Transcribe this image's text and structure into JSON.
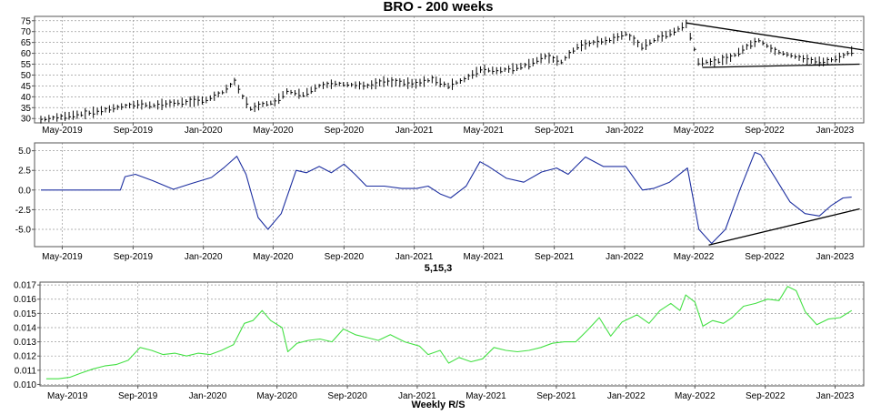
{
  "chart_data": [
    {
      "type": "ohlc",
      "title": "BRO - 200 weeks",
      "xlabel": "",
      "ylabel": "",
      "ylim": [
        28,
        77
      ],
      "yticks": [
        30,
        35,
        40,
        45,
        50,
        55,
        60,
        65,
        70,
        75
      ],
      "xlim": [
        "2019-03-14",
        "2023-02-20"
      ],
      "xticks": [
        "May-2019",
        "Sep-2019",
        "Jan-2020",
        "May-2020",
        "Sep-2020",
        "Jan-2021",
        "May-2021",
        "Sep-2021",
        "Jan-2022",
        "May-2022",
        "Sep-2022",
        "Jan-2023"
      ],
      "grid": true,
      "line_color": "#000000",
      "series": [
        {
          "points": [
            [
              "2019-03-25",
              29.5
            ],
            [
              "2019-04-22",
              30.5
            ],
            [
              "2019-05-20",
              31.5
            ],
            [
              "2019-06-17",
              32.5
            ],
            [
              "2019-07-15",
              34.0
            ],
            [
              "2019-08-12",
              35.5
            ],
            [
              "2019-09-09",
              36.5
            ],
            [
              "2019-10-07",
              36.0
            ],
            [
              "2019-11-04",
              37.0
            ],
            [
              "2019-12-02",
              37.5
            ],
            [
              "2020-01-06",
              38.5
            ],
            [
              "2020-02-03",
              42.0
            ],
            [
              "2020-02-24",
              47.0
            ],
            [
              "2020-03-09",
              40.0
            ],
            [
              "2020-03-23",
              34.5
            ],
            [
              "2020-04-13",
              36.5
            ],
            [
              "2020-05-04",
              37.5
            ],
            [
              "2020-05-25",
              42.5
            ],
            [
              "2020-06-22",
              41.0
            ],
            [
              "2020-07-20",
              45.0
            ],
            [
              "2020-08-17",
              46.0
            ],
            [
              "2020-09-14",
              45.5
            ],
            [
              "2020-10-12",
              45.0
            ],
            [
              "2020-11-09",
              47.0
            ],
            [
              "2020-12-07",
              46.5
            ],
            [
              "2021-01-04",
              46.0
            ],
            [
              "2021-02-01",
              48.0
            ],
            [
              "2021-03-01",
              45.0
            ],
            [
              "2021-03-29",
              48.0
            ],
            [
              "2021-04-26",
              52.5
            ],
            [
              "2021-05-24",
              52.0
            ],
            [
              "2021-06-21",
              53.0
            ],
            [
              "2021-07-19",
              55.0
            ],
            [
              "2021-08-16",
              58.5
            ],
            [
              "2021-09-13",
              56.0
            ],
            [
              "2021-10-11",
              63.0
            ],
            [
              "2021-11-08",
              65.0
            ],
            [
              "2021-12-06",
              66.0
            ],
            [
              "2022-01-03",
              69.0
            ],
            [
              "2022-01-31",
              63.0
            ],
            [
              "2022-02-28",
              67.0
            ],
            [
              "2022-03-28",
              70.0
            ],
            [
              "2022-04-18",
              73.5
            ],
            [
              "2022-05-09",
              56.0
            ],
            [
              "2022-06-06",
              56.0
            ],
            [
              "2022-07-04",
              58.0
            ],
            [
              "2022-08-01",
              63.0
            ],
            [
              "2022-08-22",
              66.0
            ],
            [
              "2022-09-19",
              61.0
            ],
            [
              "2022-10-17",
              59.0
            ],
            [
              "2022-11-14",
              57.0
            ],
            [
              "2022-12-12",
              56.0
            ],
            [
              "2023-01-09",
              58.0
            ],
            [
              "2023-01-30",
              61.0
            ]
          ]
        },
        {
          "name": "trendline-upper",
          "points": [
            [
              "2022-04-18",
              74.0
            ],
            [
              "2023-02-20",
              61.5
            ]
          ]
        },
        {
          "name": "trendline-lower",
          "points": [
            [
              "2022-05-16",
              53.5
            ],
            [
              "2023-02-13",
              55.0
            ]
          ]
        }
      ]
    },
    {
      "type": "line",
      "title": "",
      "xlabel": "5,15,3",
      "ylabel": "",
      "ylim": [
        -7.2,
        6.0
      ],
      "yticks": [
        -5.0,
        -2.5,
        0.0,
        2.5,
        5.0
      ],
      "ytick_labels": [
        "-5.0",
        "-2.5",
        "0.0",
        "2.5",
        "5.0"
      ],
      "xlim": [
        "2019-03-14",
        "2023-02-20"
      ],
      "xticks": [
        "May-2019",
        "Sep-2019",
        "Jan-2020",
        "May-2020",
        "Sep-2020",
        "Jan-2021",
        "May-2021",
        "Sep-2021",
        "Jan-2022",
        "May-2022",
        "Sep-2022",
        "Jan-2023"
      ],
      "grid": true,
      "line_color": "#1d2fa0",
      "series": [
        {
          "points": [
            [
              "2019-03-25",
              0.0
            ],
            [
              "2019-08-10",
              0.0
            ],
            [
              "2019-08-18",
              1.7
            ],
            [
              "2019-09-05",
              2.0
            ],
            [
              "2019-10-05",
              1.2
            ],
            [
              "2019-11-10",
              0.1
            ],
            [
              "2019-12-10",
              0.8
            ],
            [
              "2020-01-15",
              1.6
            ],
            [
              "2020-02-05",
              2.8
            ],
            [
              "2020-02-28",
              4.3
            ],
            [
              "2020-03-15",
              2.0
            ],
            [
              "2020-04-05",
              -3.5
            ],
            [
              "2020-04-22",
              -5.0
            ],
            [
              "2020-05-15",
              -3.0
            ],
            [
              "2020-06-10",
              2.5
            ],
            [
              "2020-06-28",
              2.2
            ],
            [
              "2020-07-20",
              3.0
            ],
            [
              "2020-08-10",
              2.2
            ],
            [
              "2020-09-01",
              3.3
            ],
            [
              "2020-09-20",
              2.0
            ],
            [
              "2020-10-10",
              0.5
            ],
            [
              "2020-11-10",
              0.5
            ],
            [
              "2020-12-10",
              0.2
            ],
            [
              "2021-01-05",
              0.2
            ],
            [
              "2021-01-25",
              0.5
            ],
            [
              "2021-02-15",
              -0.5
            ],
            [
              "2021-03-05",
              -1.0
            ],
            [
              "2021-04-01",
              0.5
            ],
            [
              "2021-04-25",
              3.6
            ],
            [
              "2021-05-10",
              3.0
            ],
            [
              "2021-06-10",
              1.5
            ],
            [
              "2021-07-10",
              1.0
            ],
            [
              "2021-08-10",
              2.3
            ],
            [
              "2021-09-05",
              2.8
            ],
            [
              "2021-09-25",
              2.0
            ],
            [
              "2021-10-25",
              4.2
            ],
            [
              "2021-11-25",
              3.0
            ],
            [
              "2022-01-03",
              3.0
            ],
            [
              "2022-02-01",
              0.0
            ],
            [
              "2022-02-20",
              0.2
            ],
            [
              "2022-03-20",
              1.0
            ],
            [
              "2022-04-20",
              2.8
            ],
            [
              "2022-05-10",
              -5.0
            ],
            [
              "2022-06-01",
              -6.8
            ],
            [
              "2022-06-25",
              -5.0
            ],
            [
              "2022-07-20",
              0.0
            ],
            [
              "2022-08-15",
              4.8
            ],
            [
              "2022-08-25",
              4.5
            ],
            [
              "2022-09-20",
              1.5
            ],
            [
              "2022-10-15",
              -1.5
            ],
            [
              "2022-11-10",
              -3.0
            ],
            [
              "2022-12-05",
              -3.3
            ],
            [
              "2022-12-25",
              -2.0
            ],
            [
              "2023-01-15",
              -1.0
            ],
            [
              "2023-01-30",
              -0.9
            ]
          ]
        },
        {
          "name": "trendline",
          "color": "#000000",
          "points": [
            [
              "2022-05-27",
              -7.0
            ],
            [
              "2023-02-13",
              -2.4
            ]
          ]
        }
      ]
    },
    {
      "type": "line",
      "title": "",
      "xlabel": "Weekly R/S",
      "ylabel": "",
      "ylim": [
        0.0099,
        0.0172
      ],
      "yticks": [
        0.01,
        0.011,
        0.012,
        0.013,
        0.014,
        0.015,
        0.016,
        0.017
      ],
      "ytick_labels": [
        "0.010",
        "0.011",
        "0.012",
        "0.013",
        "0.014",
        "0.015",
        "0.016",
        "0.017"
      ],
      "xlim": [
        "2019-03-14",
        "2023-02-20"
      ],
      "xticks": [
        "May-2019",
        "Sep-2019",
        "Jan-2020",
        "May-2020",
        "Sep-2020",
        "Jan-2021",
        "May-2021",
        "Sep-2021",
        "Jan-2022",
        "May-2022",
        "Sep-2022",
        "Jan-2023"
      ],
      "grid": true,
      "line_color": "#44e044",
      "series": [
        {
          "points": [
            [
              "2019-03-25",
              0.0104
            ],
            [
              "2019-04-15",
              0.0104
            ],
            [
              "2019-05-05",
              0.0105
            ],
            [
              "2019-05-25",
              0.0108
            ],
            [
              "2019-06-15",
              0.0111
            ],
            [
              "2019-07-05",
              0.0113
            ],
            [
              "2019-07-25",
              0.0114
            ],
            [
              "2019-08-15",
              0.0117
            ],
            [
              "2019-09-05",
              0.0126
            ],
            [
              "2019-09-25",
              0.0124
            ],
            [
              "2019-10-15",
              0.0121
            ],
            [
              "2019-11-05",
              0.0122
            ],
            [
              "2019-11-25",
              0.012
            ],
            [
              "2019-12-15",
              0.0122
            ],
            [
              "2020-01-05",
              0.0121
            ],
            [
              "2020-01-25",
              0.0124
            ],
            [
              "2020-02-15",
              0.0128
            ],
            [
              "2020-03-05",
              0.0143
            ],
            [
              "2020-03-20",
              0.0145
            ],
            [
              "2020-04-05",
              0.0152
            ],
            [
              "2020-04-20",
              0.0145
            ],
            [
              "2020-05-10",
              0.014
            ],
            [
              "2020-05-20",
              0.0123
            ],
            [
              "2020-06-05",
              0.0129
            ],
            [
              "2020-06-25",
              0.0131
            ],
            [
              "2020-07-15",
              0.0132
            ],
            [
              "2020-08-05",
              0.013
            ],
            [
              "2020-08-25",
              0.0139
            ],
            [
              "2020-09-15",
              0.0135
            ],
            [
              "2020-10-05",
              0.0133
            ],
            [
              "2020-10-25",
              0.0131
            ],
            [
              "2020-11-15",
              0.0135
            ],
            [
              "2020-12-10",
              0.013
            ],
            [
              "2021-01-05",
              0.0127
            ],
            [
              "2021-01-20",
              0.0121
            ],
            [
              "2021-02-10",
              0.0124
            ],
            [
              "2021-02-25",
              0.0115
            ],
            [
              "2021-03-15",
              0.0119
            ],
            [
              "2021-04-05",
              0.0116
            ],
            [
              "2021-04-25",
              0.0118
            ],
            [
              "2021-05-15",
              0.0126
            ],
            [
              "2021-06-05",
              0.0124
            ],
            [
              "2021-06-25",
              0.0123
            ],
            [
              "2021-07-15",
              0.0124
            ],
            [
              "2021-08-05",
              0.0126
            ],
            [
              "2021-08-25",
              0.0129
            ],
            [
              "2021-09-15",
              0.013
            ],
            [
              "2021-10-05",
              0.013
            ],
            [
              "2021-10-25",
              0.0138
            ],
            [
              "2021-11-15",
              0.0147
            ],
            [
              "2021-12-05",
              0.0134
            ],
            [
              "2021-12-25",
              0.0144
            ],
            [
              "2022-01-20",
              0.0149
            ],
            [
              "2022-02-10",
              0.0143
            ],
            [
              "2022-03-01",
              0.0152
            ],
            [
              "2022-03-20",
              0.0157
            ],
            [
              "2022-04-05",
              0.0152
            ],
            [
              "2022-04-15",
              0.0163
            ],
            [
              "2022-05-01",
              0.0158
            ],
            [
              "2022-05-15",
              0.0141
            ],
            [
              "2022-06-01",
              0.0145
            ],
            [
              "2022-06-20",
              0.0143
            ],
            [
              "2022-07-05",
              0.0147
            ],
            [
              "2022-07-25",
              0.0155
            ],
            [
              "2022-08-15",
              0.0157
            ],
            [
              "2022-09-05",
              0.016
            ],
            [
              "2022-09-25",
              0.0159
            ],
            [
              "2022-10-10",
              0.0169
            ],
            [
              "2022-10-25",
              0.0166
            ],
            [
              "2022-11-10",
              0.0151
            ],
            [
              "2022-11-30",
              0.0142
            ],
            [
              "2022-12-20",
              0.0146
            ],
            [
              "2023-01-10",
              0.0147
            ],
            [
              "2023-01-30",
              0.0152
            ]
          ]
        }
      ]
    }
  ]
}
